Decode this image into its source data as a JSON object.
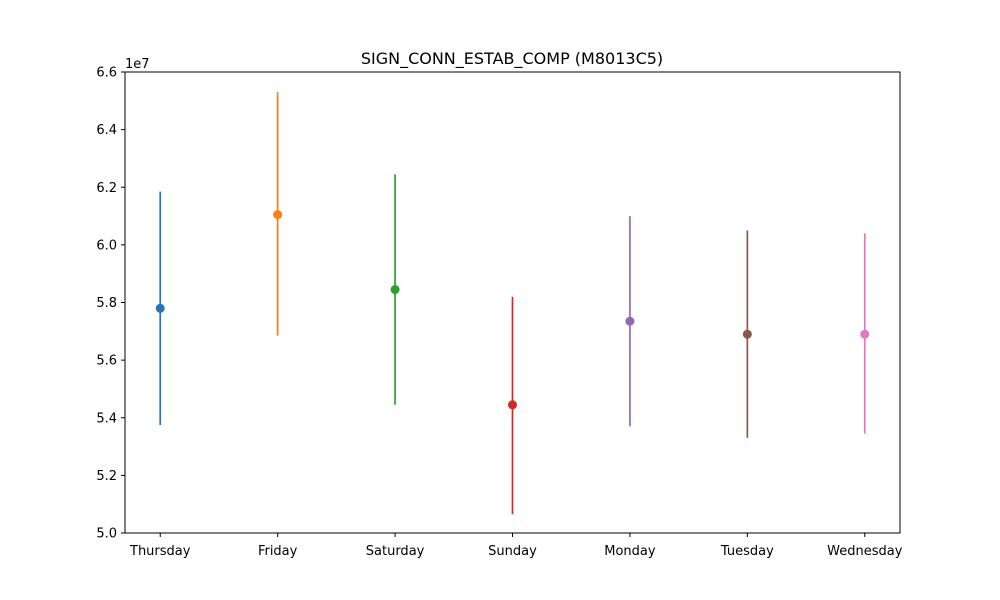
{
  "chart_data": {
    "type": "errorbar",
    "title": "SIGN_CONN_ESTAB_COMP (M8013C5)",
    "xlabel": "",
    "ylabel": "",
    "y_offset_label": "1e7",
    "y_scale_factor": 10000000,
    "ylim": [
      5.0,
      6.6
    ],
    "y_ticks": [
      5.0,
      5.2,
      5.4,
      5.6,
      5.8,
      6.0,
      6.2,
      6.4,
      6.6
    ],
    "grid": false,
    "categories": [
      "Thursday",
      "Friday",
      "Saturday",
      "Sunday",
      "Monday",
      "Tuesday",
      "Wednesday"
    ],
    "points": [
      {
        "category": "Thursday",
        "mean": 5.78,
        "low": 5.375,
        "high": 6.185,
        "color": "#1f77b4"
      },
      {
        "category": "Friday",
        "mean": 6.105,
        "low": 5.685,
        "high": 6.53,
        "color": "#ff7f0e"
      },
      {
        "category": "Saturday",
        "mean": 5.845,
        "low": 5.445,
        "high": 6.245,
        "color": "#2ca02c"
      },
      {
        "category": "Sunday",
        "mean": 5.445,
        "low": 5.065,
        "high": 5.82,
        "color": "#d62728"
      },
      {
        "category": "Monday",
        "mean": 5.735,
        "low": 5.37,
        "high": 6.1,
        "color": "#9467bd"
      },
      {
        "category": "Tuesday",
        "mean": 5.69,
        "low": 5.33,
        "high": 6.05,
        "color": "#8c564b"
      },
      {
        "category": "Wednesday",
        "mean": 5.69,
        "low": 5.345,
        "high": 6.04,
        "color": "#e377c2"
      }
    ]
  }
}
